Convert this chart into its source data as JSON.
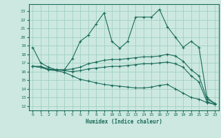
{
  "title": "",
  "xlabel": "Humidex (Indice chaleur)",
  "ylabel": "",
  "background_color": "#cce8e0",
  "grid_color": "#99ccbb",
  "line_color": "#1a6b5a",
  "xlim": [
    -0.5,
    23.5
  ],
  "ylim": [
    11.5,
    23.8
  ],
  "yticks": [
    12,
    13,
    14,
    15,
    16,
    17,
    18,
    19,
    20,
    21,
    22,
    23
  ],
  "xticks": [
    0,
    1,
    2,
    3,
    4,
    5,
    6,
    7,
    8,
    9,
    10,
    11,
    12,
    13,
    14,
    15,
    16,
    17,
    18,
    19,
    20,
    21,
    22,
    23
  ],
  "series1": [
    18.8,
    17.0,
    16.5,
    16.2,
    16.2,
    17.5,
    19.5,
    20.2,
    21.5,
    22.8,
    19.5,
    18.7,
    19.5,
    22.3,
    22.3,
    22.3,
    23.2,
    21.2,
    20.0,
    18.8,
    19.5,
    18.8,
    13.0,
    12.3
  ],
  "series2": [
    16.6,
    16.6,
    16.3,
    16.2,
    16.2,
    16.3,
    16.5,
    16.9,
    17.1,
    17.3,
    17.4,
    17.4,
    17.5,
    17.6,
    17.7,
    17.7,
    17.8,
    18.0,
    17.8,
    17.2,
    16.2,
    15.5,
    12.8,
    12.3
  ],
  "series3": [
    16.6,
    16.5,
    16.2,
    16.2,
    16.1,
    16.0,
    16.1,
    16.3,
    16.4,
    16.5,
    16.6,
    16.6,
    16.7,
    16.8,
    16.9,
    16.9,
    17.0,
    17.1,
    16.9,
    16.5,
    15.5,
    14.8,
    12.5,
    12.2
  ],
  "series4": [
    16.6,
    16.5,
    16.2,
    16.1,
    15.9,
    15.5,
    15.1,
    14.9,
    14.7,
    14.5,
    14.4,
    14.3,
    14.2,
    14.1,
    14.1,
    14.2,
    14.4,
    14.5,
    14.0,
    13.5,
    13.0,
    12.8,
    12.4,
    12.2
  ]
}
